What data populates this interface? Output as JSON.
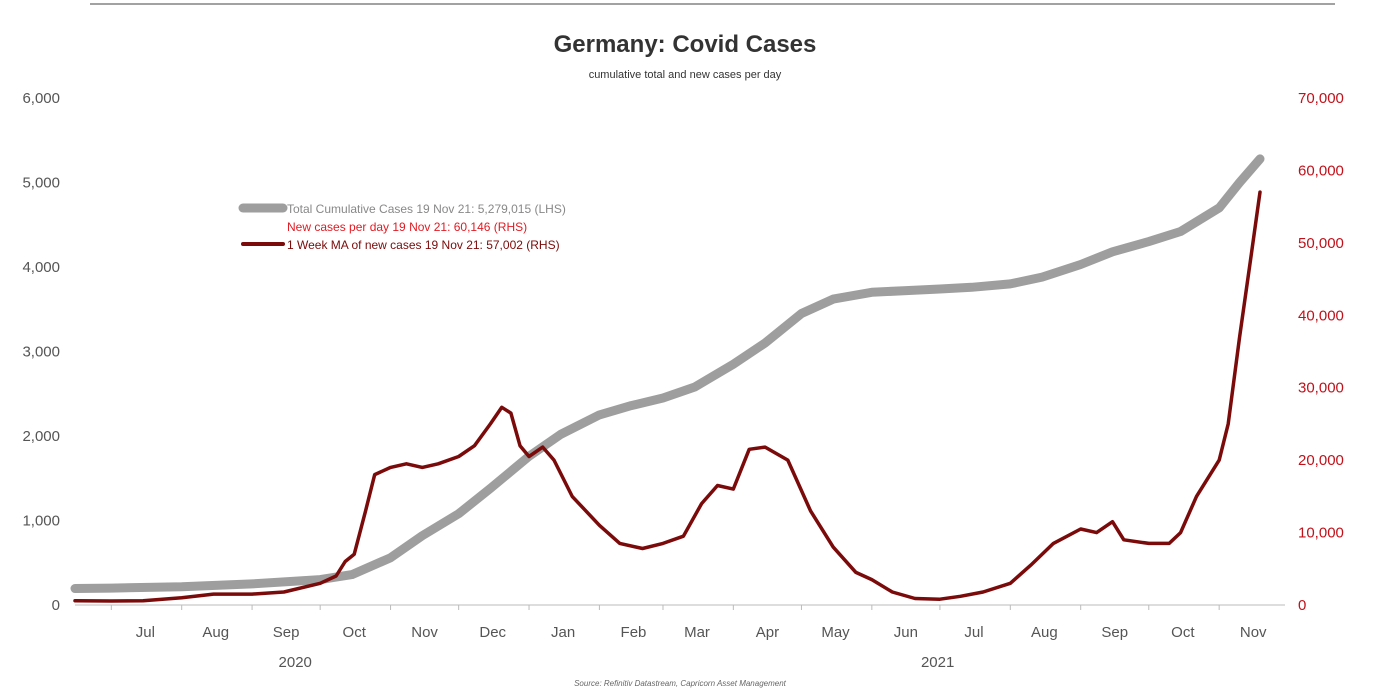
{
  "chart_data": {
    "type": "line",
    "title": "Germany: Covid Cases",
    "subtitle": "cumulative total and new cases per day",
    "source": "Source: Refinitiv Datastream, Capricorn Asset Management",
    "x_labels": [
      "Jul",
      "Aug",
      "Sep",
      "Oct",
      "Nov",
      "Dec",
      "Jan",
      "Feb",
      "Mar",
      "Apr",
      "May",
      "Jun",
      "Jul",
      "Aug",
      "Sep",
      "Oct",
      "Nov"
    ],
    "year_labels": [
      "2020",
      "2021"
    ],
    "x_range": [
      "2020-06-15",
      "2021-11-30"
    ],
    "y_left": {
      "range": [
        0,
        6000
      ],
      "ticks": [
        0,
        1000,
        2000,
        3000,
        4000,
        5000,
        6000
      ],
      "tick_labels": [
        "0",
        "1,000",
        "2,000",
        "3,000",
        "4,000",
        "5,000",
        "6,000"
      ]
    },
    "y_right": {
      "range": [
        0,
        70000
      ],
      "ticks": [
        0,
        10000,
        20000,
        30000,
        40000,
        50000,
        60000,
        70000
      ],
      "tick_labels": [
        "0",
        "10,000",
        "20,000",
        "30,000",
        "40,000",
        "50,000",
        "60,000",
        "70,000"
      ]
    },
    "legend_placement": "upper-left",
    "series": [
      {
        "name": "Total Cumulative Cases 19 Nov 21: 5,279,015 (LHS)",
        "axis": "left",
        "color": "#9e9e9e",
        "points": [
          [
            "2020-06-15",
            195
          ],
          [
            "2020-07-01",
            200
          ],
          [
            "2020-08-01",
            215
          ],
          [
            "2020-09-01",
            250
          ],
          [
            "2020-10-01",
            300
          ],
          [
            "2020-10-15",
            360
          ],
          [
            "2020-11-01",
            560
          ],
          [
            "2020-11-15",
            820
          ],
          [
            "2020-12-01",
            1080
          ],
          [
            "2020-12-15",
            1380
          ],
          [
            "2021-01-01",
            1760
          ],
          [
            "2021-01-15",
            2020
          ],
          [
            "2021-02-01",
            2250
          ],
          [
            "2021-02-15",
            2360
          ],
          [
            "2021-03-01",
            2450
          ],
          [
            "2021-03-15",
            2580
          ],
          [
            "2021-04-01",
            2850
          ],
          [
            "2021-04-15",
            3100
          ],
          [
            "2021-05-01",
            3450
          ],
          [
            "2021-05-15",
            3620
          ],
          [
            "2021-06-01",
            3700
          ],
          [
            "2021-06-15",
            3720
          ],
          [
            "2021-07-01",
            3740
          ],
          [
            "2021-07-15",
            3760
          ],
          [
            "2021-08-01",
            3800
          ],
          [
            "2021-08-15",
            3880
          ],
          [
            "2021-09-01",
            4030
          ],
          [
            "2021-09-15",
            4180
          ],
          [
            "2021-10-01",
            4300
          ],
          [
            "2021-10-15",
            4420
          ],
          [
            "2021-11-01",
            4700
          ],
          [
            "2021-11-10",
            5000
          ],
          [
            "2021-11-19",
            5279
          ]
        ]
      },
      {
        "name": "New cases per day 19 Nov 21: 60,146 (RHS)",
        "axis": "right",
        "color": "#e21a22",
        "points": []
      },
      {
        "name": "1 Week MA of new cases 19 Nov 21: 57,002 (RHS)",
        "axis": "right",
        "color": "#7b0a0a",
        "points": [
          [
            "2020-06-15",
            600
          ],
          [
            "2020-07-01",
            550
          ],
          [
            "2020-07-15",
            600
          ],
          [
            "2020-08-01",
            1000
          ],
          [
            "2020-08-15",
            1500
          ],
          [
            "2020-09-01",
            1500
          ],
          [
            "2020-09-15",
            1800
          ],
          [
            "2020-10-01",
            3000
          ],
          [
            "2020-10-08",
            4000
          ],
          [
            "2020-10-12",
            6000
          ],
          [
            "2020-10-16",
            7000
          ],
          [
            "2020-10-21",
            13000
          ],
          [
            "2020-10-25",
            18000
          ],
          [
            "2020-11-01",
            19000
          ],
          [
            "2020-11-08",
            19500
          ],
          [
            "2020-11-15",
            19000
          ],
          [
            "2020-11-22",
            19500
          ],
          [
            "2020-12-01",
            20500
          ],
          [
            "2020-12-08",
            22000
          ],
          [
            "2020-12-15",
            25000
          ],
          [
            "2020-12-20",
            27300
          ],
          [
            "2020-12-24",
            26500
          ],
          [
            "2020-12-28",
            22000
          ],
          [
            "2021-01-01",
            20500
          ],
          [
            "2021-01-07",
            21800
          ],
          [
            "2021-01-12",
            20000
          ],
          [
            "2021-01-20",
            15000
          ],
          [
            "2021-02-01",
            11000
          ],
          [
            "2021-02-10",
            8500
          ],
          [
            "2021-02-20",
            7800
          ],
          [
            "2021-03-01",
            8500
          ],
          [
            "2021-03-10",
            9500
          ],
          [
            "2021-03-18",
            14000
          ],
          [
            "2021-03-25",
            16500
          ],
          [
            "2021-04-01",
            16000
          ],
          [
            "2021-04-08",
            21500
          ],
          [
            "2021-04-15",
            21800
          ],
          [
            "2021-04-25",
            20000
          ],
          [
            "2021-05-05",
            13000
          ],
          [
            "2021-05-15",
            8000
          ],
          [
            "2021-05-25",
            4500
          ],
          [
            "2021-06-01",
            3500
          ],
          [
            "2021-06-10",
            1800
          ],
          [
            "2021-06-20",
            900
          ],
          [
            "2021-07-01",
            800
          ],
          [
            "2021-07-10",
            1200
          ],
          [
            "2021-07-20",
            1800
          ],
          [
            "2021-08-01",
            3000
          ],
          [
            "2021-08-10",
            5500
          ],
          [
            "2021-08-20",
            8500
          ],
          [
            "2021-09-01",
            10500
          ],
          [
            "2021-09-08",
            10000
          ],
          [
            "2021-09-15",
            11500
          ],
          [
            "2021-09-20",
            9000
          ],
          [
            "2021-10-01",
            8500
          ],
          [
            "2021-10-10",
            8500
          ],
          [
            "2021-10-15",
            10000
          ],
          [
            "2021-10-22",
            15000
          ],
          [
            "2021-11-01",
            20000
          ],
          [
            "2021-11-05",
            25000
          ],
          [
            "2021-11-10",
            37000
          ],
          [
            "2021-11-15",
            48000
          ],
          [
            "2021-11-19",
            57002
          ]
        ]
      }
    ]
  }
}
